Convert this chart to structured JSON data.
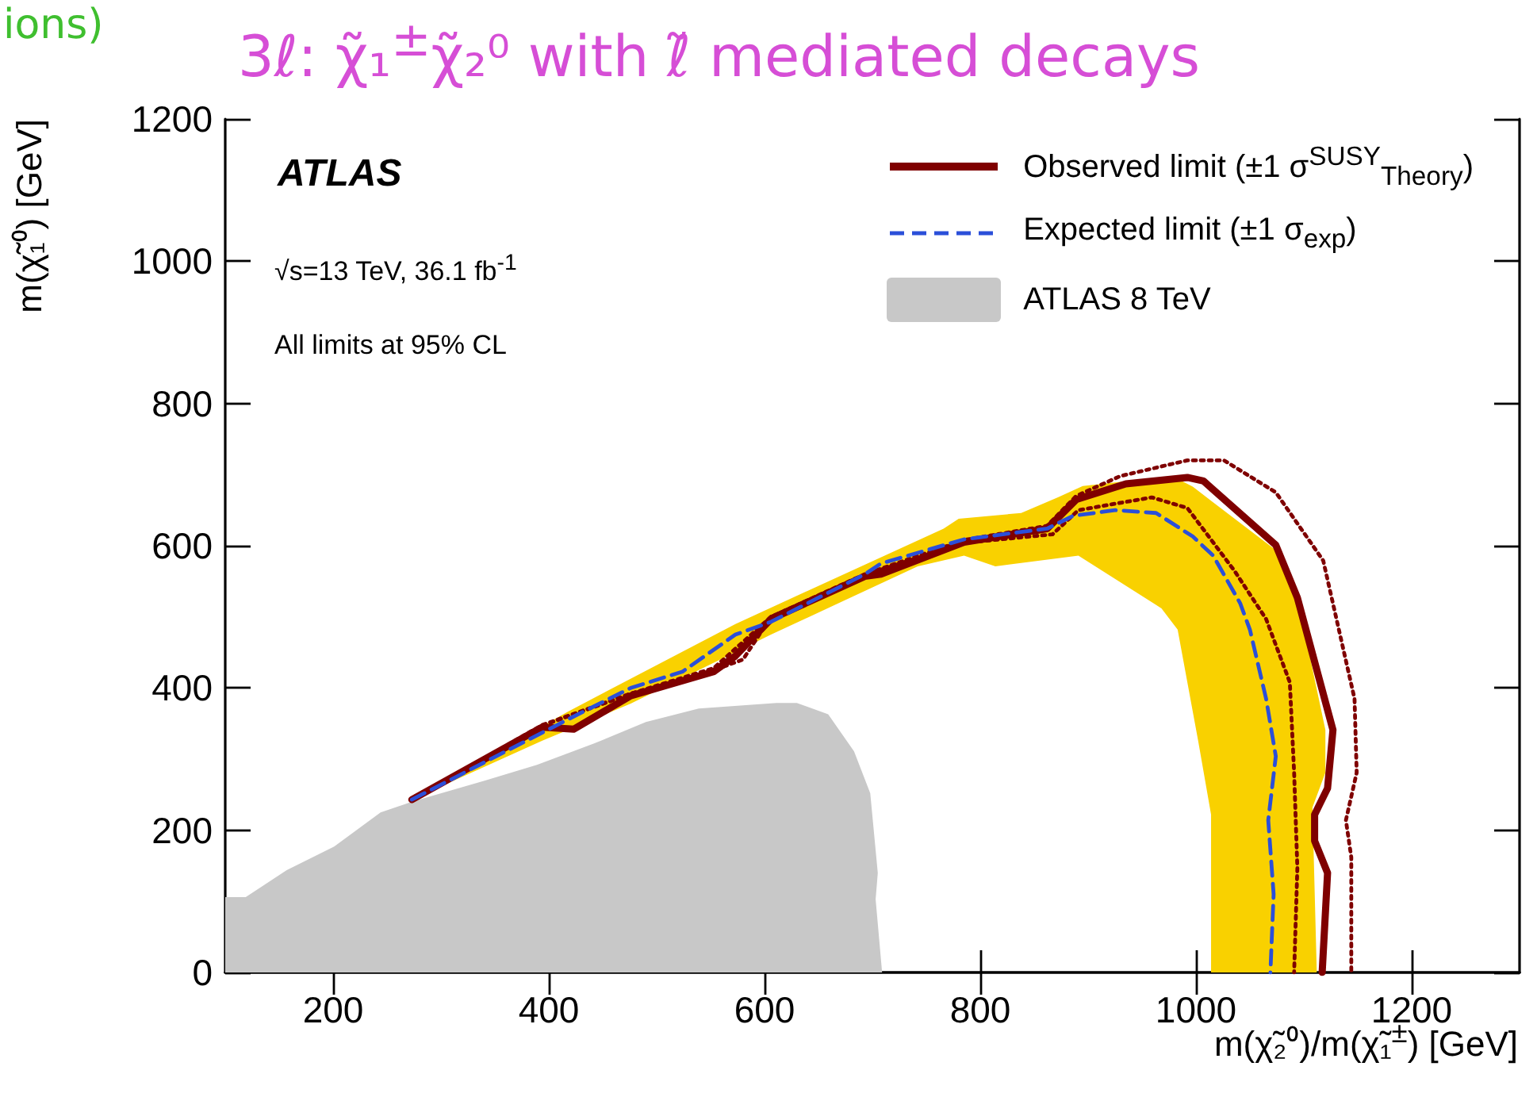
{
  "chart_data": {
    "type": "line",
    "title": "3ℓ: χ̃₁$^{±}$χ̃₂⁰ with ℓ̃ mediated decays",
    "xlabel": "m(χ̃₂⁰)/m(χ̃₁$^{±}$) [GeV]",
    "ylabel": "m(χ̃₁⁰) [GeV]",
    "annotations": [
      "ions)",
      "ATLAS",
      "√s=13 TeV, 36.1 fb$^{-1}$",
      "All limits at 95% CL"
    ],
    "xlim": [
      100,
      1300
    ],
    "xticks": [
      200,
      400,
      600,
      800,
      1000,
      1200
    ],
    "ylim": [
      0,
      1200
    ],
    "yticks": [
      0,
      200,
      400,
      600,
      800,
      1000,
      1200
    ],
    "grid": false,
    "legend": "top right",
    "marker": "none",
    "series": [
      {
        "name": "Observed limit  (±1 σ$^{SUSY}$$_{Theory}$)",
        "color": "#7f0000",
        "line_style": "solid",
        "x": [
          273,
          394,
          423,
          476,
          553,
          573,
          606,
          693,
          708,
          785,
          862,
          889,
          935,
          992,
          1007,
          1074,
          1094,
          1127,
          1122,
          1110,
          1110,
          1122,
          1117
        ],
        "values": [
          243,
          345,
          342,
          389,
          423,
          445,
          497,
          557,
          560,
          605,
          624,
          665,
          687,
          696,
          691,
          601,
          527,
          341,
          259,
          222,
          185,
          140,
          0
        ]
      },
      {
        "color": "#7f0000",
        "line_style": "dotted",
        "x": [
          273,
          394,
          476,
          553,
          606,
          693,
          785,
          862,
          889,
          930,
          992,
          1026,
          1074,
          1118,
          1147,
          1149,
          1139,
          1144,
          1144
        ],
        "values": [
          243,
          348,
          392,
          428,
          500,
          560,
          608,
          628,
          670,
          698,
          720,
          720,
          675,
          579,
          385,
          281,
          214,
          162,
          0
        ]
      },
      {
        "color": "#7f0000",
        "line_style": "dotted",
        "x": [
          273,
          394,
          476,
          540,
          580,
          606,
          693,
          785,
          867,
          891,
          959,
          992,
          1036,
          1065,
          1087,
          1091,
          1094,
          1091
        ],
        "values": [
          243,
          347,
          392,
          418,
          440,
          500,
          559,
          604,
          616,
          650,
          668,
          653,
          564,
          497,
          408,
          281,
          147,
          0
        ]
      },
      {
        "name": "Expected limit (±1 σ$_{exp}$)",
        "color": "#2b4fd9",
        "line_style": "dashed",
        "x": [
          273,
          418,
          476,
          524,
          573,
          606,
          693,
          708,
          785,
          862,
          886,
          925,
          963,
          997,
          1016,
          1041,
          1050,
          1065,
          1074,
          1067,
          1072,
          1069
        ],
        "values": [
          243,
          356,
          400,
          423,
          475,
          493,
          560,
          575,
          609,
          624,
          642,
          650,
          646,
          613,
          586,
          519,
          482,
          385,
          304,
          214,
          110,
          0
        ]
      },
      {
        "type": "area",
        "color": "#f9d100",
        "x": [
          273,
          418,
          573,
          766,
          780,
          838,
          872,
          895,
          978,
          997,
          1074,
          1094,
          1120,
          1120,
          1108,
          1112,
          1014,
          1014,
          1002,
          983,
          968,
          891,
          814,
          785,
          742,
          606,
          476,
          394
        ],
        "values": [
          243,
          367,
          490,
          624,
          638,
          646,
          668,
          684,
          698,
          683,
          594,
          527,
          341,
          281,
          232,
          0,
          0,
          222,
          326,
          482,
          512,
          586,
          571,
          586,
          571,
          475,
          378,
          326
        ]
      },
      {
        "name": "ATLAS 8 TeV",
        "type": "area",
        "color": "#c8c8c8",
        "x": [
          100,
          100,
          119,
          157,
          201,
          244,
          273,
          341,
          389,
          442,
          490,
          539,
          611,
          630,
          659,
          683,
          698,
          705,
          703,
          709
        ],
        "values": [
          0,
          106,
          106,
          144,
          177,
          225,
          240,
          270,
          292,
          322,
          352,
          371,
          379,
          379,
          363,
          311,
          252,
          140,
          103,
          0
        ]
      }
    ]
  }
}
